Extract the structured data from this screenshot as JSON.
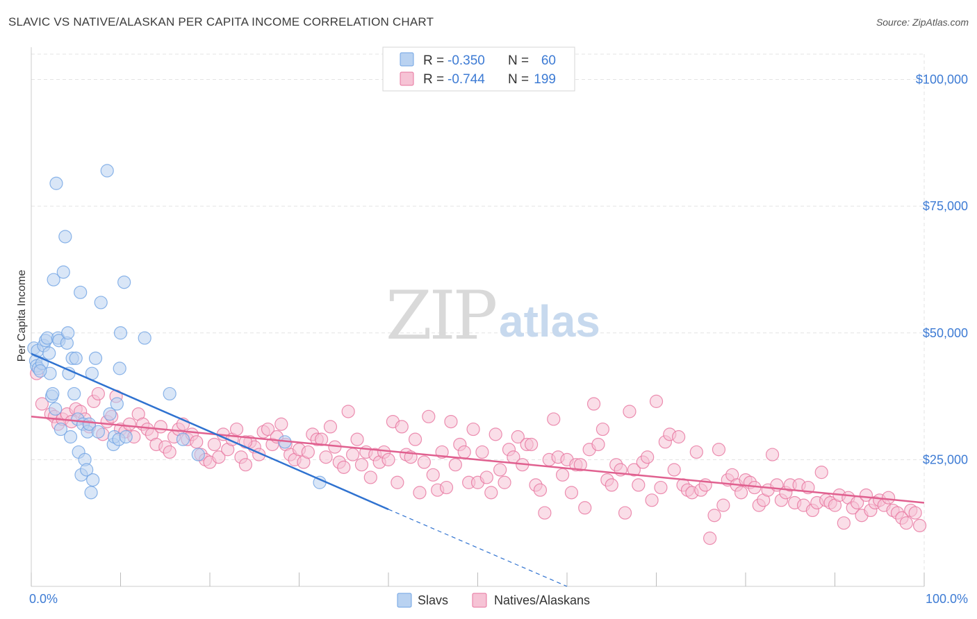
{
  "title": "SLAVIC VS NATIVE/ALASKAN PER CAPITA INCOME CORRELATION CHART",
  "source": "Source: ZipAtlas.com",
  "watermark": {
    "zip": "ZIP",
    "atlas": "atlas"
  },
  "colors": {
    "slavs": "#6fa3e3",
    "slavs_fill": "#b9d2f1",
    "natives": "#e7739d",
    "natives_fill": "#f6c3d5",
    "accent_text": "#3d7bd4",
    "grid": "#e3e3e3"
  },
  "legend": {
    "rows": [
      {
        "r_label": "R =",
        "r_value": "-0.350",
        "n_label": "N =",
        "n_value": "60"
      },
      {
        "r_label": "R =",
        "r_value": "-0.744",
        "n_label": "N =",
        "n_value": "199"
      }
    ]
  },
  "chart_data": {
    "type": "scatter",
    "title": "SLAVIC VS NATIVE/ALASKAN PER CAPITA INCOME CORRELATION CHART",
    "xlabel": "",
    "ylabel": "Per Capita Income",
    "xlim": [
      0,
      100
    ],
    "ylim": [
      0,
      105000
    ],
    "x_tick_labels": [
      "0.0%",
      "100.0%"
    ],
    "y_ticks": [
      25000,
      50000,
      75000,
      100000
    ],
    "y_tick_labels": [
      "$25,000",
      "$50,000",
      "$75,000",
      "$100,000"
    ],
    "grid": true,
    "legend_position": "top-center",
    "bottom_legend": [
      "Slavs",
      "Natives/Alaskans"
    ],
    "series": [
      {
        "name": "Slavs",
        "r": -0.35,
        "n": 60,
        "trend": {
          "x": [
            0,
            40
          ],
          "y": [
            45900,
            15200
          ],
          "dashed_to": [
            60,
            0
          ]
        },
        "points": [
          [
            0.3,
            47000
          ],
          [
            0.5,
            44500
          ],
          [
            0.6,
            43500
          ],
          [
            0.7,
            46500
          ],
          [
            0.8,
            43000
          ],
          [
            1.2,
            44000
          ],
          [
            1.4,
            47500
          ],
          [
            1.6,
            48500
          ],
          [
            1.8,
            49000
          ],
          [
            2.0,
            46000
          ],
          [
            2.1,
            42000
          ],
          [
            2.3,
            37500
          ],
          [
            2.4,
            38000
          ],
          [
            2.5,
            60500
          ],
          [
            2.7,
            35000
          ],
          [
            2.8,
            79500
          ],
          [
            3.0,
            49000
          ],
          [
            3.1,
            48500
          ],
          [
            3.3,
            31000
          ],
          [
            3.6,
            62000
          ],
          [
            3.8,
            69000
          ],
          [
            4.0,
            48000
          ],
          [
            4.1,
            50000
          ],
          [
            4.2,
            42000
          ],
          [
            4.4,
            29500
          ],
          [
            4.6,
            45000
          ],
          [
            4.8,
            38000
          ],
          [
            5.0,
            45000
          ],
          [
            5.2,
            33000
          ],
          [
            5.3,
            26500
          ],
          [
            5.5,
            58000
          ],
          [
            5.6,
            22000
          ],
          [
            5.8,
            32000
          ],
          [
            6.0,
            25000
          ],
          [
            6.2,
            23000
          ],
          [
            6.3,
            30500
          ],
          [
            6.5,
            32000
          ],
          [
            6.7,
            18500
          ],
          [
            6.8,
            42000
          ],
          [
            6.9,
            21000
          ],
          [
            7.2,
            45000
          ],
          [
            7.5,
            30500
          ],
          [
            7.8,
            56000
          ],
          [
            8.5,
            82000
          ],
          [
            8.8,
            34000
          ],
          [
            9.2,
            28000
          ],
          [
            9.3,
            29500
          ],
          [
            9.6,
            36000
          ],
          [
            9.8,
            29000
          ],
          [
            9.9,
            43000
          ],
          [
            10.0,
            50000
          ],
          [
            10.4,
            60000
          ],
          [
            10.6,
            29500
          ],
          [
            12.7,
            49000
          ],
          [
            15.5,
            38000
          ],
          [
            17.0,
            29000
          ],
          [
            18.7,
            26000
          ],
          [
            28.4,
            28500
          ],
          [
            32.3,
            20500
          ],
          [
            1.0,
            42500
          ]
        ]
      },
      {
        "name": "Natives/Alaskans",
        "r": -0.744,
        "n": 199,
        "trend": {
          "x": [
            0,
            100
          ],
          "y": [
            33500,
            16500
          ]
        },
        "points": [
          [
            0.6,
            42000
          ],
          [
            1.2,
            36000
          ],
          [
            2.2,
            34000
          ],
          [
            2.6,
            33500
          ],
          [
            3.0,
            32000
          ],
          [
            3.5,
            33000
          ],
          [
            4.0,
            34000
          ],
          [
            4.5,
            32500
          ],
          [
            5.0,
            35000
          ],
          [
            5.5,
            34500
          ],
          [
            6.0,
            33000
          ],
          [
            6.5,
            31500
          ],
          [
            7.0,
            36500
          ],
          [
            7.5,
            38000
          ],
          [
            8.0,
            30000
          ],
          [
            8.5,
            32500
          ],
          [
            9.0,
            33500
          ],
          [
            9.5,
            37500
          ],
          [
            10.0,
            31000
          ],
          [
            10.5,
            30500
          ],
          [
            11.0,
            32000
          ],
          [
            11.5,
            29500
          ],
          [
            12.0,
            34000
          ],
          [
            12.5,
            32000
          ],
          [
            13.0,
            31000
          ],
          [
            13.5,
            30000
          ],
          [
            14.0,
            28000
          ],
          [
            14.5,
            31500
          ],
          [
            15.0,
            27500
          ],
          [
            15.5,
            26500
          ],
          [
            16.0,
            29500
          ],
          [
            16.5,
            31000
          ],
          [
            17.0,
            32000
          ],
          [
            17.5,
            29000
          ],
          [
            18.0,
            30000
          ],
          [
            18.5,
            28500
          ],
          [
            19.0,
            26000
          ],
          [
            19.5,
            25000
          ],
          [
            20.0,
            24500
          ],
          [
            20.5,
            28000
          ],
          [
            21.0,
            25500
          ],
          [
            21.5,
            30000
          ],
          [
            22.0,
            27000
          ],
          [
            22.5,
            29000
          ],
          [
            23.0,
            31000
          ],
          [
            23.5,
            25500
          ],
          [
            24.0,
            24000
          ],
          [
            24.5,
            28500
          ],
          [
            25.0,
            27500
          ],
          [
            25.5,
            26000
          ],
          [
            26.0,
            30500
          ],
          [
            26.5,
            31000
          ],
          [
            27.0,
            28000
          ],
          [
            27.5,
            29500
          ],
          [
            28.0,
            32000
          ],
          [
            28.5,
            28000
          ],
          [
            29.0,
            26000
          ],
          [
            29.5,
            25000
          ],
          [
            30.0,
            27000
          ],
          [
            30.5,
            24500
          ],
          [
            31.0,
            26500
          ],
          [
            31.5,
            30000
          ],
          [
            32.0,
            29000
          ],
          [
            32.5,
            29000
          ],
          [
            33.0,
            25500
          ],
          [
            33.5,
            31500
          ],
          [
            34.0,
            27500
          ],
          [
            34.5,
            24500
          ],
          [
            35.0,
            23500
          ],
          [
            35.5,
            34500
          ],
          [
            36.0,
            26000
          ],
          [
            36.5,
            29000
          ],
          [
            37.0,
            24000
          ],
          [
            37.5,
            26500
          ],
          [
            38.0,
            21500
          ],
          [
            38.5,
            26000
          ],
          [
            39.0,
            24500
          ],
          [
            39.5,
            26500
          ],
          [
            40.0,
            25000
          ],
          [
            40.5,
            32500
          ],
          [
            41.0,
            20500
          ],
          [
            41.5,
            31500
          ],
          [
            42.0,
            26000
          ],
          [
            42.5,
            25500
          ],
          [
            43.0,
            29000
          ],
          [
            43.5,
            18500
          ],
          [
            44.0,
            24500
          ],
          [
            44.5,
            33500
          ],
          [
            45.0,
            22000
          ],
          [
            45.5,
            19000
          ],
          [
            46.0,
            26500
          ],
          [
            46.5,
            19500
          ],
          [
            47.0,
            32500
          ],
          [
            47.5,
            24000
          ],
          [
            48.0,
            28000
          ],
          [
            48.5,
            26500
          ],
          [
            49.0,
            20500
          ],
          [
            49.5,
            31000
          ],
          [
            50.0,
            20500
          ],
          [
            50.5,
            26500
          ],
          [
            51.0,
            21500
          ],
          [
            51.5,
            18500
          ],
          [
            52.0,
            30000
          ],
          [
            52.5,
            23000
          ],
          [
            53.0,
            20500
          ],
          [
            53.5,
            27000
          ],
          [
            54.0,
            25500
          ],
          [
            54.5,
            29500
          ],
          [
            55.0,
            24000
          ],
          [
            55.5,
            28000
          ],
          [
            56.0,
            28000
          ],
          [
            56.5,
            20000
          ],
          [
            57.0,
            19000
          ],
          [
            57.5,
            14500
          ],
          [
            58.0,
            25000
          ],
          [
            58.5,
            33000
          ],
          [
            59.0,
            25500
          ],
          [
            59.5,
            22000
          ],
          [
            60.0,
            25000
          ],
          [
            60.5,
            18500
          ],
          [
            61.0,
            24000
          ],
          [
            61.5,
            24000
          ],
          [
            62.0,
            15500
          ],
          [
            62.5,
            27000
          ],
          [
            63.0,
            36000
          ],
          [
            63.5,
            28000
          ],
          [
            64.0,
            31000
          ],
          [
            64.5,
            21000
          ],
          [
            65.0,
            20000
          ],
          [
            65.5,
            24000
          ],
          [
            66.0,
            23000
          ],
          [
            66.5,
            14500
          ],
          [
            67.0,
            34500
          ],
          [
            67.5,
            23000
          ],
          [
            68.0,
            20000
          ],
          [
            68.5,
            24500
          ],
          [
            69.0,
            25500
          ],
          [
            69.5,
            17000
          ],
          [
            70.0,
            36500
          ],
          [
            70.5,
            19500
          ],
          [
            71.0,
            28500
          ],
          [
            71.5,
            30000
          ],
          [
            72.0,
            23000
          ],
          [
            72.5,
            29500
          ],
          [
            73.0,
            20000
          ],
          [
            73.5,
            19000
          ],
          [
            74.0,
            18500
          ],
          [
            74.5,
            26500
          ],
          [
            75.0,
            19000
          ],
          [
            75.5,
            20000
          ],
          [
            76.0,
            9500
          ],
          [
            76.5,
            14000
          ],
          [
            77.0,
            27000
          ],
          [
            77.5,
            16000
          ],
          [
            78.0,
            21000
          ],
          [
            78.5,
            22000
          ],
          [
            79.0,
            20000
          ],
          [
            79.5,
            18500
          ],
          [
            80.0,
            21000
          ],
          [
            80.5,
            20500
          ],
          [
            81.0,
            19500
          ],
          [
            81.5,
            16000
          ],
          [
            82.0,
            17000
          ],
          [
            82.5,
            19000
          ],
          [
            83.0,
            26000
          ],
          [
            83.5,
            20000
          ],
          [
            84.0,
            17000
          ],
          [
            84.5,
            18500
          ],
          [
            85.0,
            20000
          ],
          [
            85.5,
            16500
          ],
          [
            86.0,
            20000
          ],
          [
            86.5,
            16000
          ],
          [
            87.0,
            19500
          ],
          [
            87.5,
            15000
          ],
          [
            88.0,
            16500
          ],
          [
            88.5,
            22500
          ],
          [
            89.0,
            17000
          ],
          [
            89.5,
            16500
          ],
          [
            90.0,
            16000
          ],
          [
            90.5,
            18000
          ],
          [
            91.0,
            12500
          ],
          [
            91.5,
            17500
          ],
          [
            92.0,
            15500
          ],
          [
            92.5,
            16500
          ],
          [
            93.0,
            14000
          ],
          [
            93.5,
            18000
          ],
          [
            94.0,
            15000
          ],
          [
            94.5,
            16500
          ],
          [
            95.0,
            17000
          ],
          [
            95.5,
            16000
          ],
          [
            96.0,
            17500
          ],
          [
            96.5,
            15000
          ],
          [
            97.0,
            14500
          ],
          [
            97.5,
            13500
          ],
          [
            98.0,
            12500
          ],
          [
            98.5,
            15000
          ],
          [
            99.0,
            14500
          ],
          [
            99.5,
            12000
          ],
          [
            24.0,
            28500
          ]
        ]
      }
    ]
  }
}
